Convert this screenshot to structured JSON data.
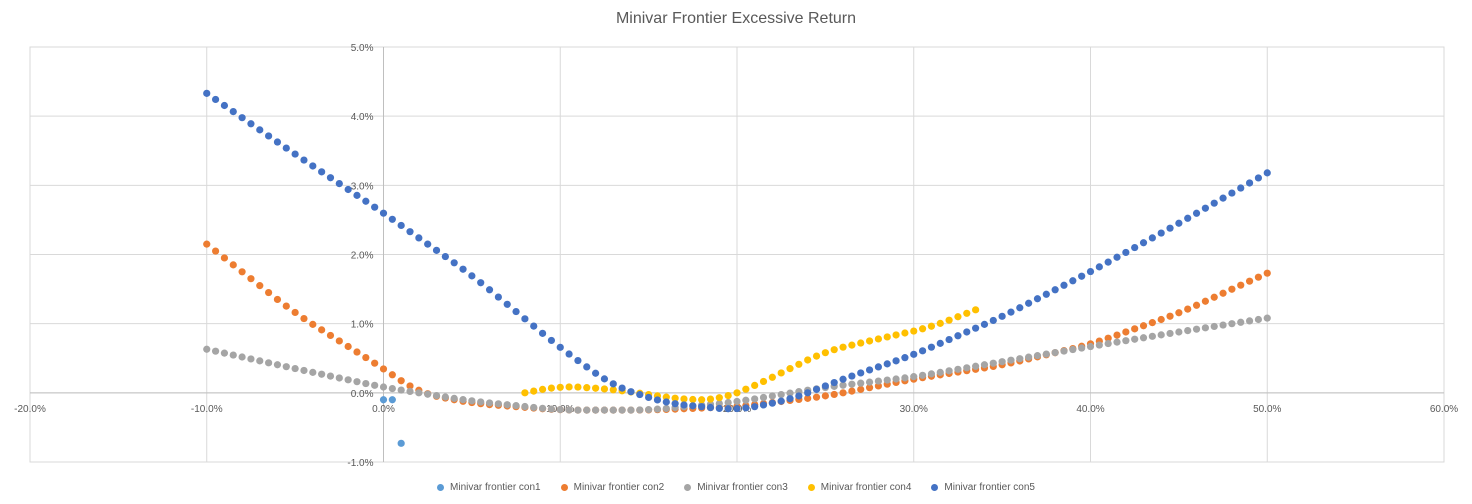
{
  "chart_data": {
    "type": "scatter",
    "title": "Minivar Frontier Excessive Return",
    "xlim": [
      -0.2,
      0.6
    ],
    "ylim": [
      -0.01,
      0.05
    ],
    "x_ticks": [
      -0.2,
      -0.1,
      0.0,
      0.1,
      0.2,
      0.3,
      0.4,
      0.5,
      0.6
    ],
    "y_ticks": [
      -0.01,
      0.0,
      0.01,
      0.02,
      0.03,
      0.04,
      0.05
    ],
    "x_tick_labels": [
      "-20.0%",
      "-10.0%",
      "0.0%",
      "10.0%",
      "20.0%",
      "30.0%",
      "40.0%",
      "50.0%",
      "60.0%"
    ],
    "y_tick_labels": [
      "-1.0%",
      "0.0%",
      "1.0%",
      "2.0%",
      "3.0%",
      "4.0%",
      "5.0%"
    ],
    "grid": true,
    "legend_position": "bottom",
    "series": [
      {
        "name": "Minivar frontier con1",
        "color": "#5B9BD5",
        "points": [
          [
            0.0,
            -0.001
          ],
          [
            0.005,
            -0.001
          ],
          [
            0.01,
            -0.0073
          ]
        ]
      },
      {
        "name": "Minivar frontier con2",
        "color": "#ED7D31",
        "curve": {
          "x0": -0.1,
          "x1": 0.5,
          "n": 121,
          "knots": [
            [
              -0.1,
              0.0215
            ],
            [
              -0.05,
              0.0115
            ],
            [
              0.0,
              0.0035
            ],
            [
              0.02,
              0.0
            ],
            [
              0.05,
              -0.0015
            ],
            [
              0.1,
              -0.0025
            ],
            [
              0.15,
              -0.0025
            ],
            [
              0.2,
              -0.002
            ],
            [
              0.25,
              -0.0005
            ],
            [
              0.3,
              0.002
            ],
            [
              0.35,
              0.004
            ],
            [
              0.4,
              0.007
            ],
            [
              0.45,
              0.0115
            ],
            [
              0.5,
              0.0173
            ]
          ]
        }
      },
      {
        "name": "Minivar frontier con3",
        "color": "#A5A5A5",
        "curve": {
          "x0": -0.1,
          "x1": 0.5,
          "n": 121,
          "knots": [
            [
              -0.1,
              0.0063
            ],
            [
              -0.05,
              0.0035
            ],
            [
              0.0,
              0.0008
            ],
            [
              0.05,
              -0.0012
            ],
            [
              0.1,
              -0.0025
            ],
            [
              0.15,
              -0.0025
            ],
            [
              0.2,
              -0.0013
            ],
            [
              0.25,
              0.0008
            ],
            [
              0.3,
              0.0023
            ],
            [
              0.35,
              0.0045
            ],
            [
              0.4,
              0.0067
            ],
            [
              0.45,
              0.0088
            ],
            [
              0.5,
              0.0108
            ]
          ]
        }
      },
      {
        "name": "Minivar frontier con4",
        "color": "#FFC000",
        "curve": {
          "x0": 0.08,
          "x1": 0.335,
          "n": 52,
          "knots": [
            [
              0.08,
              0.0
            ],
            [
              0.1,
              0.001
            ],
            [
              0.13,
              0.0005
            ],
            [
              0.17,
              -0.001
            ],
            [
              0.19,
              -0.001
            ],
            [
              0.21,
              0.001
            ],
            [
              0.25,
              0.006
            ],
            [
              0.28,
              0.0078
            ],
            [
              0.31,
              0.0095
            ],
            [
              0.335,
              0.012
            ]
          ]
        }
      },
      {
        "name": "Minivar frontier con5",
        "color": "#4472C4",
        "curve": {
          "x0": -0.1,
          "x1": 0.5,
          "n": 121,
          "knots": [
            [
              -0.1,
              0.0433
            ],
            [
              -0.05,
              0.0345
            ],
            [
              0.0,
              0.026
            ],
            [
              0.05,
              0.017
            ],
            [
              0.1,
              0.0065
            ],
            [
              0.13,
              0.001
            ],
            [
              0.16,
              -0.0015
            ],
            [
              0.2,
              -0.0025
            ],
            [
              0.23,
              -0.001
            ],
            [
              0.26,
              0.002
            ],
            [
              0.3,
              0.0055
            ],
            [
              0.35,
              0.011
            ],
            [
              0.4,
              0.0175
            ],
            [
              0.45,
              0.0245
            ],
            [
              0.5,
              0.0318
            ]
          ]
        }
      }
    ]
  }
}
